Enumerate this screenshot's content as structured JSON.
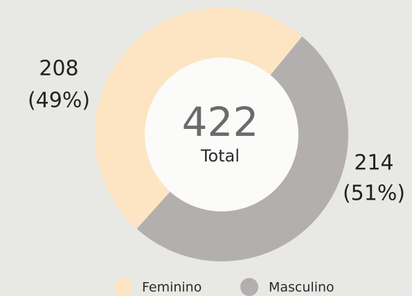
{
  "chart_data": {
    "type": "donut",
    "categories": [
      "Feminino",
      "Masculino"
    ],
    "values": [
      208,
      214
    ],
    "percentage_labels": [
      "(49%)",
      "(51%)"
    ],
    "colors": [
      "#fde5c3",
      "#b3afae"
    ],
    "total": 422,
    "total_label": "Total",
    "legend": "bottom"
  }
}
